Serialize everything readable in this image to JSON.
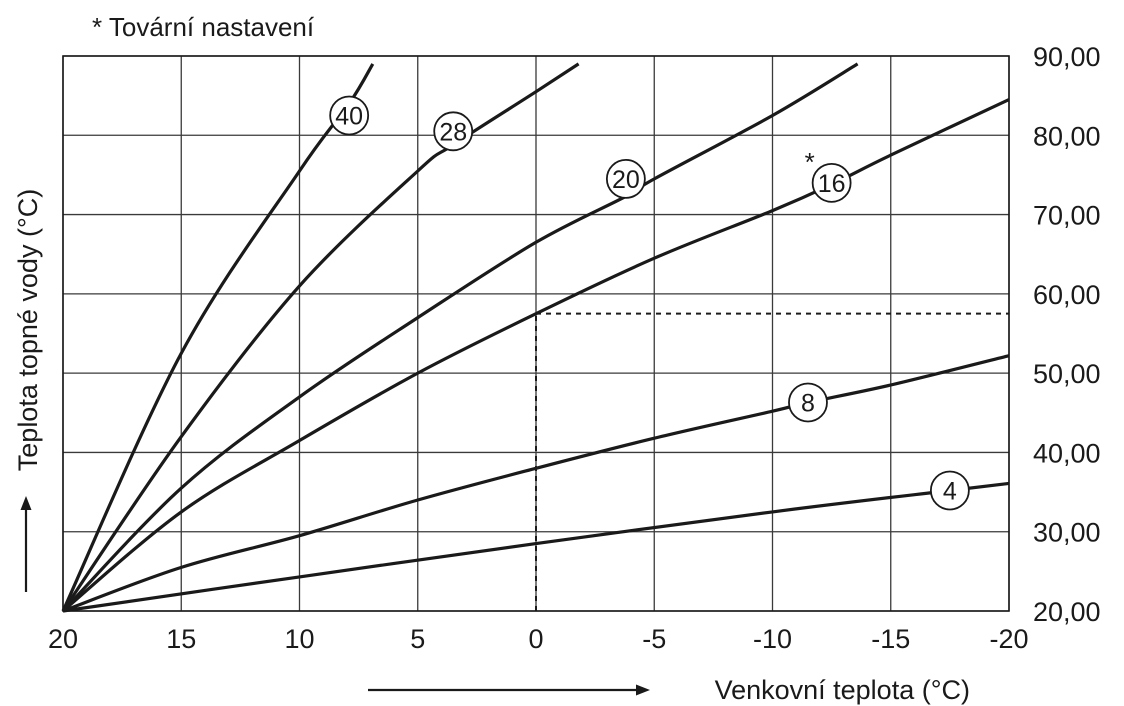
{
  "chart_data": {
    "type": "line",
    "legend": "* Tovární nastavení",
    "default_marker": "*",
    "xlabel": "Venkovní teplota (°C)",
    "ylabel": "Teplota topné vody (°C)",
    "xlim": [
      20,
      -20
    ],
    "ylim": [
      20,
      90
    ],
    "x_ticks": [
      20,
      15,
      10,
      5,
      0,
      -5,
      -10,
      -15,
      -20
    ],
    "x_tick_labels": [
      "20",
      "15",
      "10",
      "5",
      "0",
      "-5",
      "-10",
      "-15",
      "-20"
    ],
    "y_ticks": [
      20,
      30,
      40,
      50,
      60,
      70,
      80,
      90
    ],
    "y_tick_labels": [
      "20,00",
      "30,00",
      "40,00",
      "50,00",
      "60,00",
      "70,00",
      "80,00",
      "90,00"
    ],
    "y_axis_side": "right",
    "grid": true,
    "series": [
      {
        "name": "40",
        "x": [
          20,
          15,
          10,
          7.9,
          6.9
        ],
        "y": [
          20,
          52.5,
          75.5,
          84,
          89
        ],
        "label_at": [
          7.9,
          82.5
        ],
        "default": false
      },
      {
        "name": "28",
        "x": [
          20,
          15,
          10,
          5,
          3.5,
          0,
          -1.8
        ],
        "y": [
          20,
          42,
          61,
          75.5,
          78.8,
          85.5,
          89
        ],
        "label_at": [
          3.5,
          80.5
        ],
        "default": false
      },
      {
        "name": "20",
        "x": [
          20,
          15,
          10,
          5,
          0,
          -3.8,
          -5,
          -10,
          -13.6
        ],
        "y": [
          20,
          35.5,
          47,
          57,
          66.5,
          72.3,
          74.5,
          82.5,
          89
        ],
        "label_at": [
          -3.8,
          74.5
        ],
        "default": false
      },
      {
        "name": "16",
        "x": [
          20,
          15,
          10,
          5,
          0,
          -5,
          -10,
          -12.5,
          -15,
          -20
        ],
        "y": [
          20,
          32.5,
          41.5,
          50,
          57.5,
          64.5,
          70.5,
          73.8,
          77.5,
          84.5
        ],
        "label_at": [
          -12.5,
          74
        ],
        "default": true
      },
      {
        "name": "8",
        "x": [
          20,
          15,
          10,
          5,
          0,
          -5,
          -10,
          -11.5,
          -15,
          -20
        ],
        "y": [
          20,
          25.5,
          29.5,
          34,
          38,
          41.8,
          45.2,
          46.3,
          48.5,
          52.2
        ],
        "label_at": [
          -11.5,
          46.3
        ],
        "default": false
      },
      {
        "name": "4",
        "x": [
          20,
          10,
          0,
          -10,
          -17.5,
          -20
        ],
        "y": [
          20,
          24.3,
          28.5,
          32.5,
          35.2,
          36.1
        ],
        "label_at": [
          -17.5,
          35.2
        ],
        "default": false
      }
    ],
    "reference": {
      "x": 0,
      "y": 57.5
    }
  }
}
